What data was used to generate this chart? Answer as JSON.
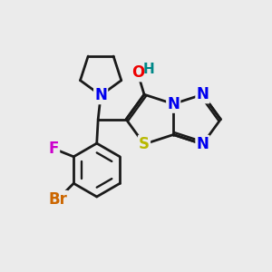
{
  "bg_color": "#ebebeb",
  "bond_color": "#1a1a1a",
  "atom_colors": {
    "N": "#0000ee",
    "S": "#b8b800",
    "O": "#ee0000",
    "F": "#cc00cc",
    "Br": "#cc6600",
    "H": "#008888",
    "C": "#1a1a1a"
  },
  "font_size": 12,
  "lw": 2.0
}
